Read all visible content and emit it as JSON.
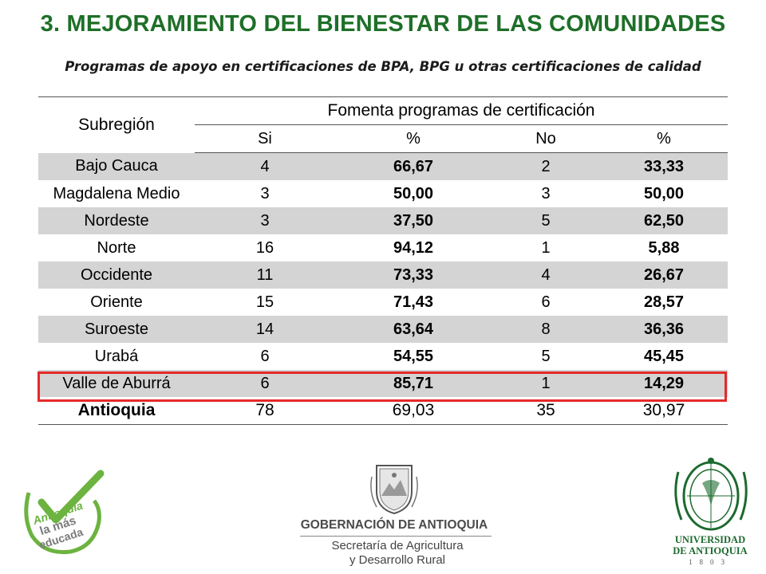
{
  "slide": {
    "title": "3. MEJORAMIENTO DEL BIENESTAR DE LAS COMUNIDADES",
    "subtitle": "Programas de apoyo en certificaciones de BPA, BPG u otras certificaciones de calidad"
  },
  "table": {
    "row_header": "Subregión",
    "group_header": "Fomenta programas de certificación",
    "columns": [
      "Si",
      "%",
      "No",
      "%"
    ],
    "highlighted_row": "Valle de Aburrá",
    "highlight_color": "#e42a28",
    "shade_color": "#d4d4d4",
    "total": {
      "name": "Antioquia",
      "si": "78",
      "si_pct": "69,03",
      "no": "35",
      "no_pct": "30,97"
    }
  },
  "chart_data": {
    "type": "table",
    "title": "Programas de apoyo en certificaciones de BPA, BPG u otras certificaciones de calidad",
    "columns": [
      "Subregión",
      "Si",
      "%",
      "No",
      "%"
    ],
    "rows": [
      {
        "name": "Bajo Cauca",
        "si": "4",
        "si_pct": "66,67",
        "no": "2",
        "no_pct": "33,33"
      },
      {
        "name": "Magdalena Medio",
        "si": "3",
        "si_pct": "50,00",
        "no": "3",
        "no_pct": "50,00"
      },
      {
        "name": "Nordeste",
        "si": "3",
        "si_pct": "37,50",
        "no": "5",
        "no_pct": "62,50"
      },
      {
        "name": "Norte",
        "si": "16",
        "si_pct": "94,12",
        "no": "1",
        "no_pct": "5,88"
      },
      {
        "name": "Occidente",
        "si": "11",
        "si_pct": "73,33",
        "no": "4",
        "no_pct": "26,67"
      },
      {
        "name": "Oriente",
        "si": "15",
        "si_pct": "71,43",
        "no": "6",
        "no_pct": "28,57"
      },
      {
        "name": "Suroeste",
        "si": "14",
        "si_pct": "63,64",
        "no": "8",
        "no_pct": "36,36"
      },
      {
        "name": "Urabá",
        "si": "6",
        "si_pct": "54,55",
        "no": "5",
        "no_pct": "45,45"
      },
      {
        "name": "Valle de Aburrá",
        "si": "6",
        "si_pct": "85,71",
        "no": "1",
        "no_pct": "14,29"
      }
    ]
  },
  "logos": {
    "left": {
      "line1": "Antioquia",
      "line2": "la más",
      "line3": "educada",
      "icon": "checkmark-icon",
      "color": "#6cb33f"
    },
    "center": {
      "main": "GOBERNACIÓN DE ANTIOQUIA",
      "line1": "Secretaría de Agricultura",
      "line2": "y Desarrollo Rural",
      "icon": "coat-of-arms-icon"
    },
    "right": {
      "line1": "UNIVERSIDAD",
      "line2": "DE ANTIOQUIA",
      "year": "1803",
      "icon": "university-seal-icon",
      "color": "#1c6a2e"
    }
  }
}
